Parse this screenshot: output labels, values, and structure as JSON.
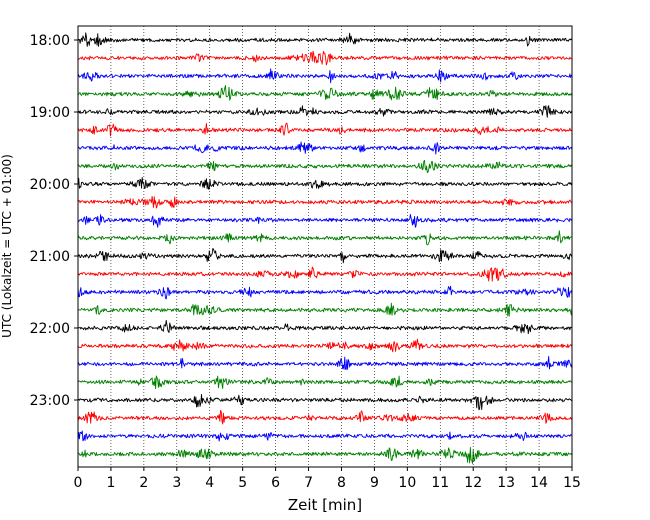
{
  "chart_data": {
    "type": "line",
    "subtype": "helicorder seismogram",
    "title": "",
    "xlabel": "Zeit  [min]",
    "ylabel": "UTC (Lokalzeit = UTC + 01:00)",
    "xlim": [
      0,
      15
    ],
    "x_ticks": [
      "0",
      "1",
      "2",
      "3",
      "4",
      "5",
      "6",
      "7",
      "8",
      "9",
      "10",
      "11",
      "12",
      "13",
      "14",
      "15"
    ],
    "y_tick_labels": [
      "18:00",
      "19:00",
      "20:00",
      "21:00",
      "22:00",
      "23:00"
    ],
    "trace_start_times": [
      "18:00",
      "18:15",
      "18:30",
      "18:45",
      "19:00",
      "19:15",
      "19:30",
      "19:45",
      "20:00",
      "20:15",
      "20:30",
      "20:45",
      "21:00",
      "21:15",
      "21:30",
      "21:45",
      "22:00",
      "22:15",
      "22:30",
      "22:45",
      "23:00",
      "23:15",
      "23:30",
      "23:45"
    ],
    "trace_minutes": 15,
    "trace_colors": [
      "#000000",
      "#ff0000",
      "#0000ff",
      "#008000"
    ],
    "vertical_grid": "dotted, every 1 min",
    "horizontal_grid": false,
    "legend": false
  }
}
